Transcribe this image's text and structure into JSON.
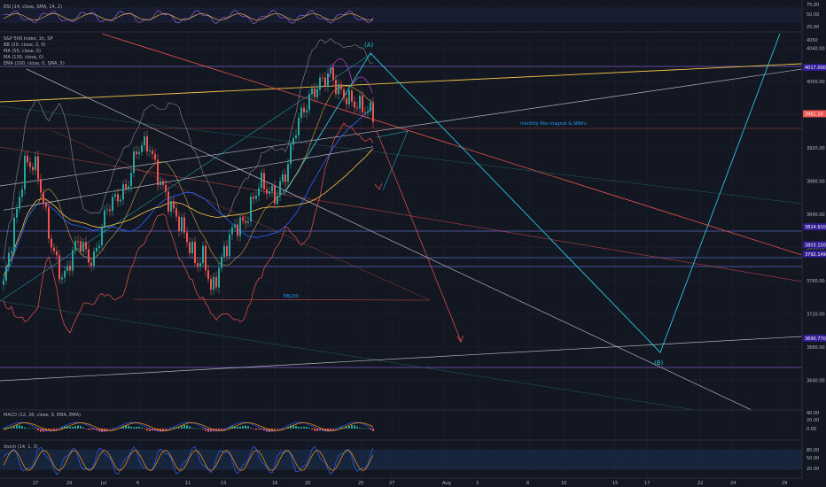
{
  "chart_data": {
    "type": "candlestick",
    "symbol_title": "S&P 500 Index, 1h, SP",
    "colors": {
      "up": "#26a69a",
      "down": "#ef5350",
      "background": "#131722",
      "grid": "#1f2430"
    },
    "rsi_panel": {
      "label": "RSI (14, close, SMA, 14, 2)",
      "ticks": [
        "75.00",
        "50.00",
        "25.00"
      ]
    },
    "price_panel": {
      "indicators": [
        {
          "label": "BB (20, close, 2, 0)",
          "color": "#787b86"
        },
        {
          "label": "MA (50, close, 0)",
          "color": "#2962ff"
        },
        {
          "label": "MA (130, close, 0)",
          "color": "#f7c548"
        },
        {
          "label": "EMA (200, close, 0, SMA, 5)",
          "color": "#ffffff"
        }
      ],
      "ylim": [
        3625,
        4055
      ],
      "ticks": [
        "4050",
        "4040.00",
        "4000.00",
        "3960.00",
        "3920.00",
        "3880.00",
        "3840.00",
        "3800.00",
        "3760.00",
        "3720.00",
        "3680.00",
        "3640.00"
      ],
      "current_price": "3961.10",
      "price_badges": [
        {
          "text": "4017.000",
          "value": 4017
        },
        {
          "text": "3824.910",
          "value": 3824.91
        },
        {
          "text": "3803.150",
          "value": 3803.15
        },
        {
          "text": "3792.149",
          "value": 3792.15
        },
        {
          "text": "3690.770",
          "value": 3690.77
        }
      ],
      "annotations": {
        "wave_a": "(A)",
        "wave_b": "(B)",
        "monthly_note": "monthly fibo-magnet & SMA's",
        "box_label": "BB(20)"
      }
    },
    "macd_panel": {
      "label": "MACD (12, 26, close, 9, EMA, EMA)",
      "ticks": [
        "40.00",
        "20.00",
        "0.00"
      ]
    },
    "stoch_panel": {
      "label": "Stoch (14, 1, 3)",
      "ticks": [
        "80.00",
        "50.00",
        "20.00"
      ]
    },
    "x_ticks": [
      "27",
      "29",
      "Jul",
      "6",
      "11",
      "13",
      "18",
      "20",
      "25",
      "27",
      "Aug",
      "3",
      "8",
      "10",
      "15",
      "17",
      "22",
      "24",
      "29"
    ]
  }
}
